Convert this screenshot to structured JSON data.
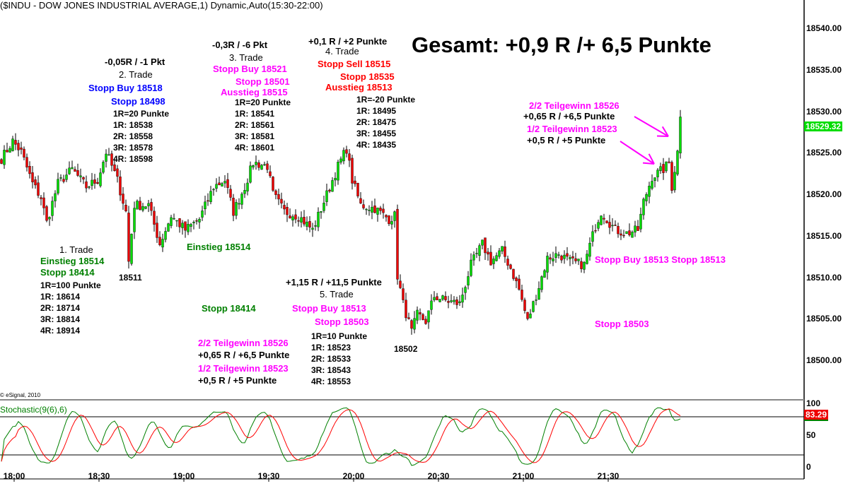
{
  "header": {
    "title": "($INDU - DOW JONES INDUSTRIAL AVERAGE,1) Dynamic,Auto(15:30-22:00)"
  },
  "summary": "Gesamt: +0,9 R /+ 6,5 Punkte",
  "copyright": "© eSignal, 2010",
  "colors": {
    "up": "#00dd00",
    "down": "#ee0000",
    "blue": "#0000ff",
    "magenta": "#ff00ff",
    "red": "#ff0000",
    "green": "#008000",
    "stoch_k": "#008000",
    "stoch_d": "#ff0000"
  },
  "annotations": {
    "t1": {
      "title": "1. Trade",
      "entry": "Einstieg 18514",
      "stop": "Stopp 18414",
      "r": "1R=100 Punkte",
      "r1": "1R: 18614",
      "r2": "2R: 18714",
      "r3": "3R: 18814",
      "r4": "4R: 18914",
      "low": "18511",
      "entry2": "Einstieg 18514",
      "stop2": "Stopp 18414"
    },
    "t2": {
      "result": "-0,05R / -1 Pkt",
      "title": "2. Trade",
      "entry": "Stopp Buy 18518",
      "stop": "Stopp 18498",
      "r": "1R=20 Punkte",
      "r1": "1R: 18538",
      "r2": "2R: 18558",
      "r3": "3R: 18578",
      "r4": "4R: 18598"
    },
    "t3": {
      "result": "-0,3R / -6 Pkt",
      "title": "3. Trade",
      "entry": "Stopp Buy 18521",
      "stop": "Stopp 18501",
      "exit": "Ausstieg 18515",
      "r": "1R=20 Punkte",
      "r1": "1R: 18541",
      "r2": "2R: 18561",
      "r3": "3R: 18581",
      "r4": "4R: 18601"
    },
    "t4": {
      "result": "+0,1 R / +2 Punkte",
      "title": "4. Trade",
      "entry": "Stopp Sell 18515",
      "stop": "Stopp 18535",
      "exit": "Ausstieg 18513",
      "r": "1R=-20 Punkte",
      "r1": "1R: 18495",
      "r2": "2R: 18475",
      "r3": "3R: 18455",
      "r4": "4R: 18435"
    },
    "t5": {
      "result": "+1,15 R / +11,5 Punkte",
      "title": "5. Trade",
      "entry": "Stopp Buy 18513",
      "stop": "Stopp 18503",
      "r": "1R=10 Punkte",
      "r1": "1R: 18523",
      "r2": "2R: 18533",
      "r3": "3R: 18543",
      "r4": "4R: 18553",
      "low": "18502"
    },
    "partials_left": {
      "p2": "2/2 Teilgewinn 18526",
      "p2r": "+0,65 R / +6,5 Punkte",
      "p1": "1/2 Teilgewinn 18523",
      "p1r": "+0,5 R / +5 Punkte"
    },
    "partials_right": {
      "p2": "2/2 Teilgewinn 18526",
      "p2r": "+0,65 R / +6,5 Punkte",
      "p1": "1/2 Teilgewinn 18523",
      "p1r": "+0,5 R / +5 Punkte",
      "stops": "Stopp Buy 18513 Stopp 18513",
      "stop": "Stopp 18503"
    }
  },
  "chart_data": {
    "type": "candlestick",
    "interval": "1 min",
    "ylim": [
      18495,
      18545
    ],
    "yticks": [
      "18540.00",
      "18535.00",
      "18530.00",
      "18525.00",
      "18520.00",
      "18515.00",
      "18510.00",
      "18505.00",
      "18500.00"
    ],
    "xticks": [
      "18:00",
      "18:30",
      "19:00",
      "19:30",
      "20:00",
      "20:30",
      "21:00",
      "21:30"
    ],
    "last_price": "18529.32",
    "price_path": [
      [
        "17:55",
        18524.3
      ],
      [
        "17:59",
        18526.4
      ],
      [
        "18:02",
        18525.1
      ],
      [
        "18:06",
        18521.3
      ],
      [
        "18:09",
        18519.6
      ],
      [
        "18:11",
        18516.6
      ],
      [
        "18:15",
        18521.3
      ],
      [
        "18:20",
        18523.0
      ],
      [
        "18:25",
        18520.9
      ],
      [
        "18:29",
        18521.7
      ],
      [
        "18:32",
        18525.1
      ],
      [
        "18:36",
        18521.7
      ],
      [
        "18:39",
        18517.9
      ],
      [
        "18:40",
        18511.9
      ],
      [
        "18:42",
        18518.7
      ],
      [
        "18:47",
        18518.7
      ],
      [
        "18:51",
        18514.0
      ],
      [
        "18:55",
        18517.4
      ],
      [
        "19:00",
        18515.7
      ],
      [
        "19:05",
        18517.0
      ],
      [
        "19:10",
        18520.9
      ],
      [
        "19:14",
        18521.7
      ],
      [
        "19:17",
        18517.9
      ],
      [
        "19:21",
        18520.9
      ],
      [
        "19:24",
        18523.8
      ],
      [
        "19:29",
        18523.4
      ],
      [
        "19:31",
        18520.0
      ],
      [
        "19:35",
        18517.9
      ],
      [
        "19:40",
        18517.4
      ],
      [
        "19:45",
        18515.7
      ],
      [
        "19:49",
        18519.1
      ],
      [
        "19:54",
        18523.4
      ],
      [
        "19:57",
        18525.5
      ],
      [
        "19:59",
        18521.7
      ],
      [
        "20:02",
        18518.7
      ],
      [
        "20:07",
        18518.3
      ],
      [
        "20:12",
        18517.0
      ],
      [
        "20:14",
        18517.4
      ],
      [
        "20:15",
        18510.2
      ],
      [
        "20:17",
        18506.8
      ],
      [
        "20:20",
        18503.4
      ],
      [
        "20:22",
        18505.5
      ],
      [
        "20:25",
        18504.7
      ],
      [
        "20:28",
        18507.7
      ],
      [
        "20:32",
        18507.2
      ],
      [
        "20:37",
        18506.8
      ],
      [
        "20:41",
        18511.5
      ],
      [
        "20:45",
        18514.0
      ],
      [
        "20:48",
        18511.9
      ],
      [
        "20:52",
        18513.2
      ],
      [
        "20:55",
        18511.1
      ],
      [
        "20:58",
        18508.5
      ],
      [
        "21:01",
        18504.7
      ],
      [
        "21:05",
        18508.9
      ],
      [
        "21:08",
        18512.3
      ],
      [
        "21:12",
        18512.8
      ],
      [
        "21:16",
        18511.9
      ],
      [
        "21:21",
        18511.5
      ],
      [
        "21:25",
        18516.2
      ],
      [
        "21:27",
        18517.9
      ],
      [
        "21:32",
        18515.7
      ],
      [
        "21:36",
        18515.3
      ],
      [
        "21:40",
        18515.7
      ],
      [
        "21:42",
        18519.1
      ],
      [
        "21:45",
        18522.1
      ],
      [
        "21:49",
        18523.0
      ],
      [
        "21:51",
        18523.8
      ],
      [
        "21:52",
        18520.9
      ],
      [
        "21:54",
        18525.1
      ],
      [
        "21:55",
        18529.32
      ]
    ],
    "indicator": {
      "label": "Stochastic(9(6),6)",
      "ylim": [
        0,
        100
      ],
      "yticks": [
        "100",
        "50",
        "0"
      ],
      "levels": [
        80,
        20
      ],
      "last_value": "83.29"
    }
  }
}
